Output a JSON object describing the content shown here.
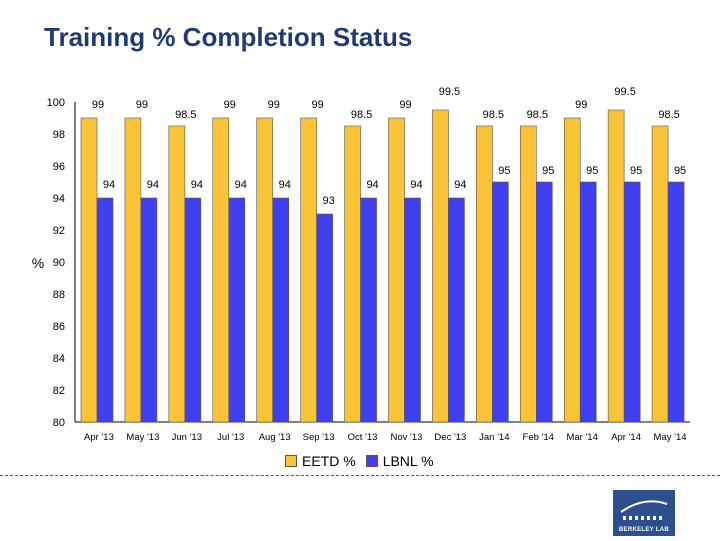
{
  "page": {
    "title": "Training % Completion Status",
    "logo_text": "BERKELEY LAB"
  },
  "chart_data": {
    "type": "bar",
    "title": "Training % Completion Status",
    "ylabel": "%",
    "xlabel": "",
    "ylim": [
      80,
      100
    ],
    "yticks": [
      80,
      82,
      84,
      86,
      88,
      90,
      92,
      94,
      96,
      98,
      100
    ],
    "grid": false,
    "legend_placement": "bottom",
    "categories": [
      "Apr '13",
      "May '13",
      "Jun '13",
      "Jul '13",
      "Aug '13",
      "Sep '13",
      "Oct '13",
      "Nov '13",
      "Dec '13",
      "Jan '14",
      "Feb '14",
      "Mar '14",
      "Apr '14",
      "May '14"
    ],
    "series": [
      {
        "name": "EETD %",
        "color": "#f9c437",
        "values": [
          99,
          99,
          98.5,
          99,
          99,
          99,
          98.5,
          99,
          99.5,
          98.5,
          98.5,
          99,
          99.5,
          98.5
        ]
      },
      {
        "name": "LBNL %",
        "color": "#4040f0",
        "values": [
          94,
          94,
          94,
          94,
          94,
          93,
          94,
          94,
          94,
          95,
          95,
          95,
          95,
          95
        ]
      }
    ]
  }
}
